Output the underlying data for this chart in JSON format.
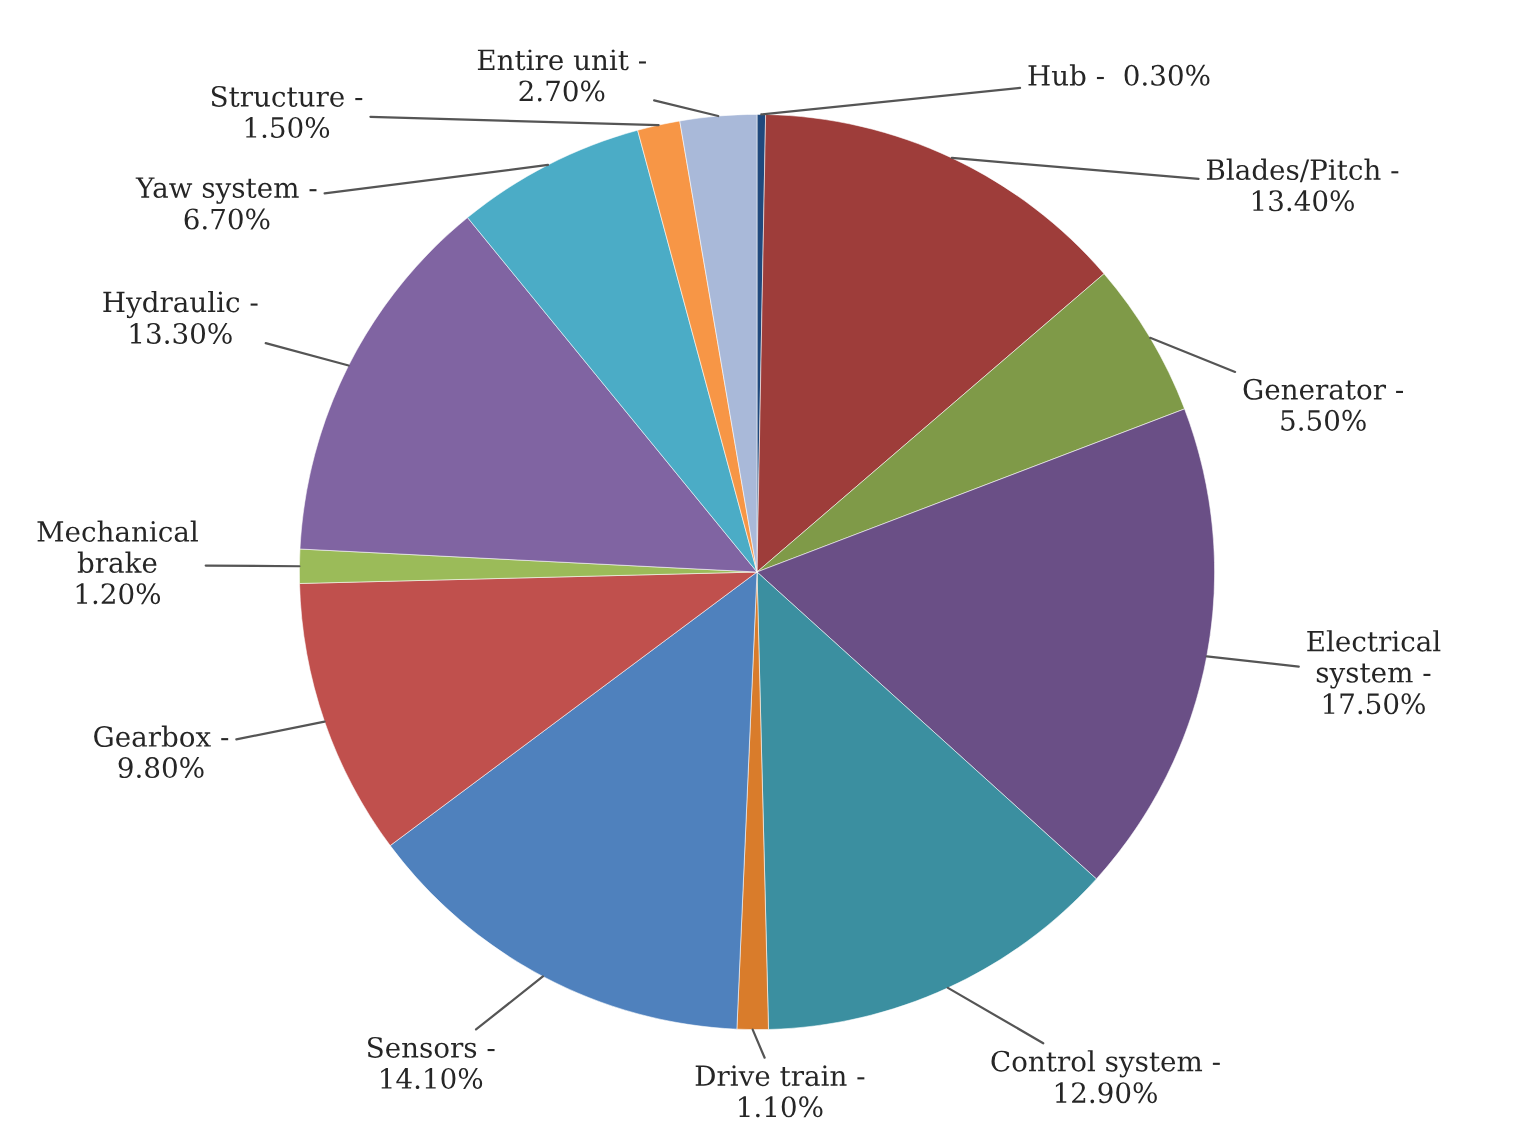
{
  "chart_data": {
    "type": "pie",
    "categories": [
      "Hub -",
      "Blades/Pitch -",
      "Generator -",
      "Electrical\nsystem -",
      "Control system -",
      "Drive train -",
      "Sensors -",
      "Gearbox -",
      "Mechanical\nbrake",
      "Hydraulic -",
      "Yaw system -",
      "Structure -",
      "Entire unit -"
    ],
    "values": [
      0.3,
      13.4,
      5.5,
      17.5,
      12.9,
      1.1,
      14.1,
      9.8,
      1.2,
      13.3,
      6.7,
      1.5,
      2.7
    ],
    "value_labels": [
      "0.30%",
      "13.40%",
      "5.50%",
      "17.50%",
      "12.90%",
      "1.10%",
      "14.10%",
      "9.80%",
      "1.20%",
      "13.30%",
      "6.70%",
      "1.50%",
      "2.70%"
    ],
    "colors": [
      "#1f497d",
      "#9e3d3a",
      "#7f9a48",
      "#6a4f86",
      "#3b8fa0",
      "#d97c2b",
      "#4f81bd",
      "#c0504d",
      "#9bbb59",
      "#8064a2",
      "#4bacc6",
      "#f79646",
      "#a9b9d9"
    ]
  }
}
